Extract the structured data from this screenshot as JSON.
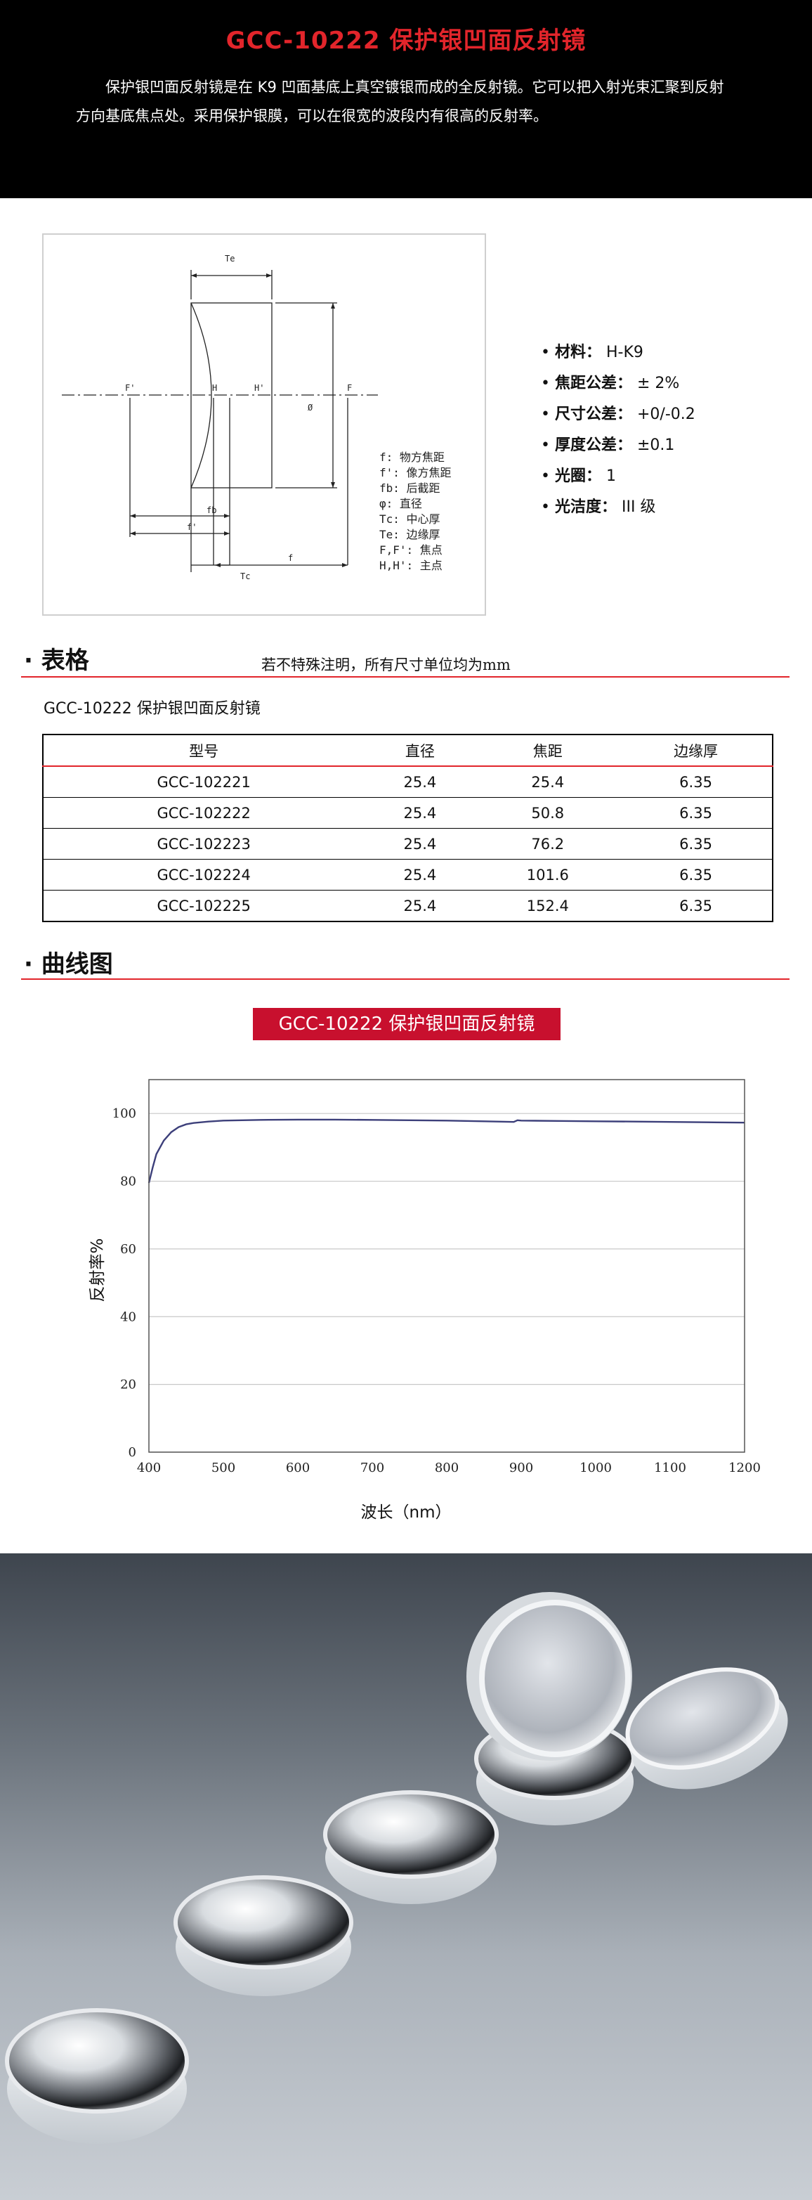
{
  "header": {
    "title": "GCC-10222 保护银凹面反射镜",
    "description": "保护银凹面反射镜是在 K9 凹面基底上真空镀银而成的全反射镜。它可以把入射光束汇聚到反射方向基底焦点处。采用保护银膜，可以在很宽的波段内有很高的反射率。"
  },
  "diagram": {
    "labels": {
      "te": "Te",
      "f_prime_left": "F'",
      "h": "H",
      "h_prime": "H'",
      "f_right": "F",
      "diameter": "Ø",
      "fb": "fb",
      "f_prime_bottom": "f'",
      "tc": "Tc",
      "f": "f"
    },
    "legend": [
      "f: 物方焦距",
      "f': 像方焦距",
      "fb: 后截距",
      "φ: 直径",
      "Tc: 中心厚",
      "Te: 边缘厚",
      "F,F': 焦点",
      "H,H': 主点"
    ]
  },
  "specs": [
    {
      "label": "材料：",
      "value": "H-K9"
    },
    {
      "label": "焦距公差：",
      "value": "± 2%"
    },
    {
      "label": "尺寸公差：",
      "value": "+0/-0.2"
    },
    {
      "label": "厚度公差：",
      "value": "±0.1"
    },
    {
      "label": "光圈：",
      "value": "1"
    },
    {
      "label": "光洁度：",
      "value": "III 级"
    }
  ],
  "table_section": {
    "bullet": "·",
    "title": "表格",
    "note": "若不特殊注明，所有尺寸单位均为mm",
    "caption": "GCC-10222 保护银凹面反射镜",
    "headers": [
      "型号",
      "直径",
      "焦距",
      "边缘厚"
    ],
    "rows": [
      [
        "GCC-102221",
        "25.4",
        "25.4",
        "6.35"
      ],
      [
        "GCC-102222",
        "25.4",
        "50.8",
        "6.35"
      ],
      [
        "GCC-102223",
        "25.4",
        "76.2",
        "6.35"
      ],
      [
        "GCC-102224",
        "25.4",
        "101.6",
        "6.35"
      ],
      [
        "GCC-102225",
        "25.4",
        "152.4",
        "6.35"
      ]
    ]
  },
  "curve_section": {
    "bullet": "·",
    "title": "曲线图"
  },
  "chart_data": {
    "type": "line",
    "title": "GCC-10222 保护银凹面反射镜",
    "xlabel": "波长（nm）",
    "ylabel": "反射率%",
    "xlim": [
      400,
      1200
    ],
    "ylim": [
      0,
      110
    ],
    "xticks": [
      400,
      500,
      600,
      700,
      800,
      900,
      1000,
      1100,
      1200
    ],
    "yticks": [
      0,
      20,
      40,
      60,
      80,
      100
    ],
    "grid": "horizontal",
    "color": "#3c3f7a",
    "series": [
      {
        "x": [
          400,
          405,
          410,
          420,
          430,
          440,
          450,
          460,
          480,
          500,
          550,
          600,
          650,
          700,
          750,
          800,
          850,
          890,
          895,
          900,
          950,
          1000,
          1050,
          1100,
          1150,
          1200
        ],
        "values": [
          79.5,
          84,
          88,
          92,
          94.5,
          96,
          96.8,
          97.2,
          97.6,
          97.9,
          98.1,
          98.2,
          98.2,
          98.1,
          98,
          97.9,
          97.7,
          97.5,
          98,
          97.9,
          97.8,
          97.7,
          97.6,
          97.5,
          97.4,
          97.3
        ]
      }
    ]
  }
}
